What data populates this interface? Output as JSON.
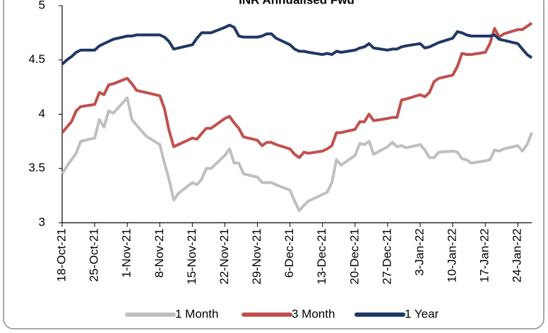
{
  "chart_data": {
    "type": "line",
    "title": "INR Annualised Fwd",
    "x": [
      "18-Oct-21",
      "19-Oct-21",
      "20-Oct-21",
      "21-Oct-21",
      "22-Oct-21",
      "25-Oct-21",
      "26-Oct-21",
      "27-Oct-21",
      "28-Oct-21",
      "29-Oct-21",
      "1-Nov-21",
      "2-Nov-21",
      "3-Nov-21",
      "4-Nov-21",
      "5-Nov-21",
      "8-Nov-21",
      "9-Nov-21",
      "10-Nov-21",
      "11-Nov-21",
      "12-Nov-21",
      "15-Nov-21",
      "16-Nov-21",
      "17-Nov-21",
      "18-Nov-21",
      "19-Nov-21",
      "22-Nov-21",
      "23-Nov-21",
      "24-Nov-21",
      "25-Nov-21",
      "26-Nov-21",
      "29-Nov-21",
      "30-Nov-21",
      "1-Dec-21",
      "2-Dec-21",
      "3-Dec-21",
      "6-Dec-21",
      "7-Dec-21",
      "8-Dec-21",
      "9-Dec-21",
      "10-Dec-21",
      "13-Dec-21",
      "14-Dec-21",
      "15-Dec-21",
      "16-Dec-21",
      "17-Dec-21",
      "20-Dec-21",
      "21-Dec-21",
      "22-Dec-21",
      "23-Dec-21",
      "24-Dec-21",
      "27-Dec-21",
      "28-Dec-21",
      "29-Dec-21",
      "30-Dec-21",
      "31-Dec-21",
      "3-Jan-22",
      "4-Jan-22",
      "5-Jan-22",
      "6-Jan-22",
      "7-Jan-22",
      "10-Jan-22",
      "11-Jan-22",
      "12-Jan-22",
      "13-Jan-22",
      "14-Jan-22",
      "17-Jan-22",
      "18-Jan-22",
      "19-Jan-22",
      "20-Jan-22",
      "21-Jan-22",
      "24-Jan-22",
      "25-Jan-22",
      "26-Jan-22",
      "27-Jan-22"
    ],
    "series": [
      {
        "name": "1 Month",
        "color": "#bfbfbf",
        "values": [
          3.45,
          3.52,
          3.58,
          3.64,
          3.75,
          3.78,
          3.95,
          3.88,
          4.03,
          4.01,
          4.15,
          3.95,
          3.9,
          3.85,
          3.8,
          3.72,
          3.55,
          3.4,
          3.21,
          3.27,
          3.37,
          3.35,
          3.4,
          3.5,
          3.5,
          3.62,
          3.68,
          3.55,
          3.55,
          3.45,
          3.42,
          3.37,
          3.37,
          3.37,
          3.35,
          3.3,
          3.2,
          3.11,
          3.16,
          3.2,
          3.26,
          3.28,
          3.37,
          3.58,
          3.53,
          3.62,
          3.73,
          3.72,
          3.75,
          3.63,
          3.7,
          3.74,
          3.7,
          3.71,
          3.69,
          3.72,
          3.67,
          3.6,
          3.6,
          3.65,
          3.66,
          3.65,
          3.59,
          3.58,
          3.55,
          3.57,
          3.58,
          3.67,
          3.66,
          3.68,
          3.71,
          3.66,
          3.72,
          3.83
        ]
      },
      {
        "name": "3 Month",
        "color": "#c0504d",
        "values": [
          3.83,
          3.88,
          3.93,
          4.03,
          4.07,
          4.09,
          4.2,
          4.18,
          4.27,
          4.28,
          4.33,
          4.28,
          4.22,
          4.21,
          4.2,
          4.17,
          4.05,
          3.85,
          3.7,
          3.72,
          3.78,
          3.77,
          3.82,
          3.87,
          3.87,
          3.96,
          3.98,
          3.92,
          3.87,
          3.79,
          3.76,
          3.71,
          3.74,
          3.74,
          3.72,
          3.68,
          3.63,
          3.6,
          3.65,
          3.64,
          3.66,
          3.68,
          3.71,
          3.83,
          3.83,
          3.86,
          3.93,
          3.93,
          4.0,
          3.94,
          3.96,
          3.97,
          3.97,
          4.13,
          4.14,
          4.18,
          4.16,
          4.2,
          4.3,
          4.33,
          4.36,
          4.44,
          4.56,
          4.55,
          4.55,
          4.57,
          4.65,
          4.79,
          4.71,
          4.74,
          4.78,
          4.78,
          4.81,
          4.84
        ]
      },
      {
        "name": "1 Year",
        "color": "#1f3864",
        "values": [
          4.46,
          4.5,
          4.53,
          4.57,
          4.59,
          4.59,
          4.63,
          4.65,
          4.67,
          4.69,
          4.72,
          4.72,
          4.73,
          4.73,
          4.73,
          4.73,
          4.71,
          4.67,
          4.6,
          4.61,
          4.64,
          4.7,
          4.75,
          4.75,
          4.75,
          4.8,
          4.82,
          4.8,
          4.72,
          4.71,
          4.71,
          4.72,
          4.74,
          4.74,
          4.7,
          4.64,
          4.6,
          4.58,
          4.58,
          4.57,
          4.55,
          4.56,
          4.55,
          4.58,
          4.57,
          4.59,
          4.61,
          4.62,
          4.65,
          4.61,
          4.59,
          4.6,
          4.6,
          4.62,
          4.63,
          4.65,
          4.61,
          4.62,
          4.64,
          4.66,
          4.7,
          4.76,
          4.75,
          4.73,
          4.72,
          4.72,
          4.72,
          4.73,
          4.69,
          4.68,
          4.65,
          4.6,
          4.55,
          4.52
        ]
      }
    ],
    "xlim": [
      "18-Oct-21",
      "27-Jan-22"
    ],
    "xticks": [
      "18-Oct-21",
      "25-Oct-21",
      "1-Nov-21",
      "8-Nov-21",
      "15-Nov-21",
      "22-Nov-21",
      "29-Nov-21",
      "6-Dec-21",
      "13-Dec-21",
      "20-Dec-21",
      "27-Dec-21",
      "3-Jan-22",
      "10-Jan-22",
      "17-Jan-22",
      "24-Jan-22"
    ],
    "ylim": [
      3,
      5
    ],
    "yticks": [
      3,
      3.5,
      4,
      4.5,
      5
    ],
    "grid": false,
    "legend": "bottom"
  }
}
